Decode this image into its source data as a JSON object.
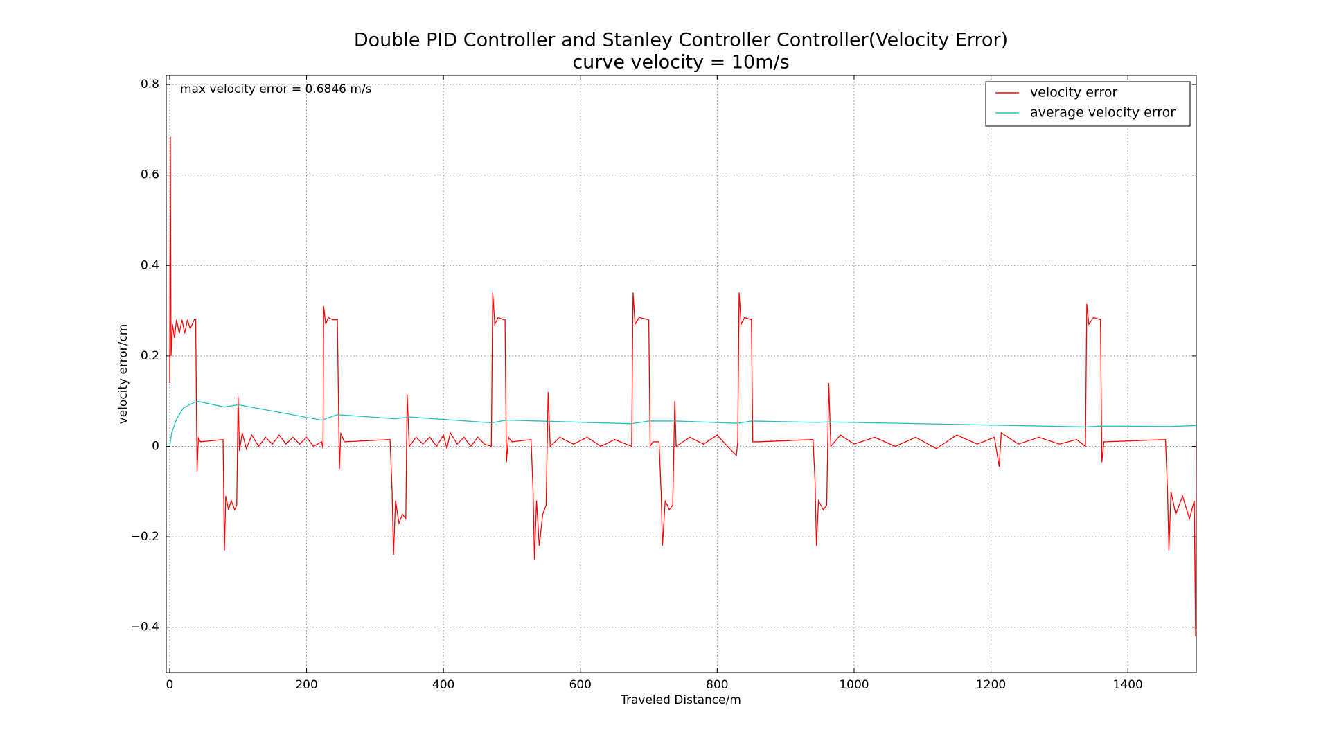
{
  "chart_data": {
    "type": "line",
    "title": "Double PID Controller and Stanley Controller Controller(Velocity Error)",
    "subtitle": "curve velocity = 10m/s",
    "annotation": "max velocity error = 0.6846 m/s",
    "xlabel": "Traveled Distance/m",
    "ylabel": "velocity error/cm",
    "xlim": [
      -5,
      1500
    ],
    "ylim": [
      -0.5,
      0.82
    ],
    "xticks": [
      0,
      200,
      400,
      600,
      800,
      1000,
      1200,
      1400
    ],
    "yticks": [
      {
        "value": -0.4,
        "label": "−0.4"
      },
      {
        "value": -0.2,
        "label": "−0.2"
      },
      0.0,
      0.2,
      0.4,
      0.6,
      0.8
    ],
    "grid": true,
    "legend": "upper right",
    "series": [
      {
        "name": "velocity error",
        "color": "#ff0000",
        "x": [
          0,
          1,
          2,
          4,
          7,
          10,
          14,
          18,
          22,
          26,
          30,
          36,
          38,
          40,
          42,
          45,
          78,
          80,
          82,
          86,
          90,
          95,
          98,
          100,
          102,
          106,
          112,
          120,
          130,
          140,
          150,
          160,
          170,
          180,
          190,
          200,
          210,
          222,
          224,
          225,
          228,
          232,
          238,
          245,
          248,
          250,
          255,
          322,
          325,
          327,
          330,
          335,
          340,
          345,
          347,
          350,
          360,
          370,
          380,
          390,
          400,
          405,
          410,
          420,
          430,
          440,
          450,
          460,
          470,
          472,
          475,
          480,
          488,
          490,
          492,
          495,
          500,
          528,
          531,
          533,
          536,
          540,
          545,
          550,
          553,
          556,
          570,
          590,
          610,
          630,
          650,
          675,
          677,
          680,
          686,
          700,
          702,
          706,
          715,
          718,
          720,
          724,
          730,
          735,
          738,
          740,
          760,
          780,
          800,
          815,
          828,
          830,
          832,
          835,
          840,
          850,
          852,
          860,
          940,
          943,
          945,
          948,
          955,
          960,
          963,
          966,
          980,
          1000,
          1030,
          1060,
          1090,
          1120,
          1150,
          1180,
          1205,
          1212,
          1215,
          1240,
          1270,
          1300,
          1325,
          1338,
          1340,
          1343,
          1350,
          1360,
          1362,
          1365,
          1455,
          1458,
          1460,
          1463,
          1470,
          1480,
          1490,
          1497,
          1499,
          1500
        ],
        "values": [
          0.14,
          0.6846,
          0.2,
          0.27,
          0.24,
          0.28,
          0.25,
          0.28,
          0.25,
          0.28,
          0.26,
          0.28,
          0.28,
          -0.055,
          0.02,
          0.01,
          0.015,
          -0.23,
          -0.11,
          -0.14,
          -0.12,
          -0.14,
          -0.13,
          0.11,
          -0.01,
          0.03,
          -0.005,
          0.025,
          0.0,
          0.02,
          0.005,
          0.025,
          0.005,
          0.02,
          0.005,
          0.02,
          0.0,
          0.01,
          -0.005,
          0.31,
          0.27,
          0.285,
          0.28,
          0.28,
          -0.05,
          0.03,
          0.01,
          0.015,
          -0.1,
          -0.24,
          -0.12,
          -0.17,
          -0.15,
          -0.16,
          0.115,
          0.0,
          0.02,
          0.005,
          0.02,
          0.0,
          0.025,
          -0.005,
          0.03,
          0.005,
          0.02,
          0.0,
          0.02,
          0.005,
          0.0,
          0.34,
          0.27,
          0.285,
          0.28,
          0.28,
          -0.035,
          0.02,
          0.01,
          0.015,
          -0.1,
          -0.25,
          -0.12,
          -0.22,
          -0.15,
          -0.13,
          0.12,
          0.0,
          0.02,
          0.005,
          0.02,
          0.0,
          0.015,
          0.0,
          0.34,
          0.27,
          0.285,
          0.28,
          0.0,
          0.01,
          0.01,
          -0.1,
          -0.22,
          -0.12,
          -0.14,
          -0.13,
          0.1,
          0.0,
          0.02,
          0.005,
          0.025,
          0.0,
          -0.02,
          0.01,
          0.34,
          0.27,
          0.285,
          0.28,
          0.01,
          0.01,
          0.015,
          -0.08,
          -0.22,
          -0.12,
          -0.14,
          -0.13,
          0.14,
          0.0,
          0.025,
          0.005,
          0.02,
          0.0,
          0.02,
          -0.005,
          0.025,
          0.005,
          0.02,
          -0.045,
          0.03,
          0.005,
          0.02,
          0.005,
          0.015,
          0.0,
          0.315,
          0.27,
          0.285,
          0.28,
          -0.035,
          0.01,
          0.015,
          -0.1,
          -0.23,
          -0.1,
          -0.15,
          -0.11,
          -0.16,
          -0.12,
          -0.42,
          0.01
        ]
      },
      {
        "name": "average velocity error",
        "color": "#20c0c0",
        "x": [
          0,
          3,
          10,
          20,
          40,
          80,
          100,
          222,
          245,
          330,
          350,
          470,
          492,
          540,
          675,
          700,
          740,
          830,
          850,
          945,
          963,
          1338,
          1360,
          1460,
          1500
        ],
        "values": [
          0.0,
          0.03,
          0.06,
          0.085,
          0.1,
          0.087,
          0.092,
          0.058,
          0.07,
          0.061,
          0.065,
          0.052,
          0.058,
          0.056,
          0.05,
          0.056,
          0.056,
          0.051,
          0.056,
          0.053,
          0.054,
          0.043,
          0.045,
          0.044,
          0.046
        ]
      }
    ]
  }
}
